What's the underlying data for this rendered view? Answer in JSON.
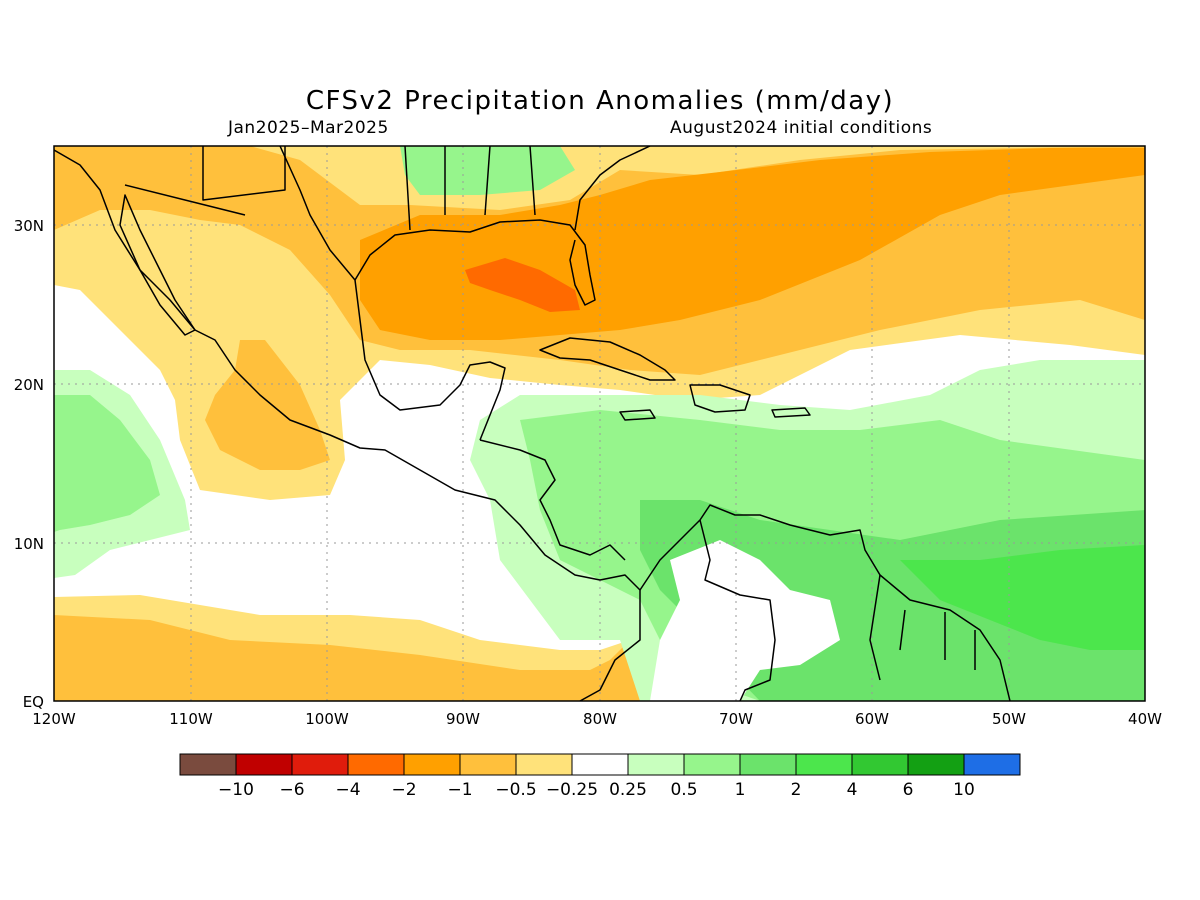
{
  "title": "CFSv2 Precipitation Anomalies (mm/day)",
  "subtitle_left": "Jan2025–Mar2025",
  "subtitle_right": "August2024 initial conditions",
  "map": {
    "lon_range": [
      -120,
      -40
    ],
    "lat_range": [
      0,
      35
    ],
    "x_ticks": [
      {
        "lon": -120,
        "label": "120W"
      },
      {
        "lon": -110,
        "label": "110W"
      },
      {
        "lon": -100,
        "label": "100W"
      },
      {
        "lon": -90,
        "label": "90W"
      },
      {
        "lon": -80,
        "label": "80W"
      },
      {
        "lon": -70,
        "label": "70W"
      },
      {
        "lon": -60,
        "label": "60W"
      },
      {
        "lon": -50,
        "label": "50W"
      },
      {
        "lon": -40,
        "label": "40W"
      }
    ],
    "y_ticks": [
      {
        "lat": 0,
        "label": "EQ"
      },
      {
        "lat": 10,
        "label": "10N"
      },
      {
        "lat": 20,
        "label": "20N"
      },
      {
        "lat": 30,
        "label": "30N"
      }
    ],
    "grid": true
  },
  "colorbar": {
    "colors": [
      "#7a4b3e",
      "#c00000",
      "#e01c0c",
      "#ff6a00",
      "#ffa000",
      "#ffc03c",
      "#ffe27a",
      "#ffffff",
      "#c8ffbe",
      "#96f58c",
      "#6be36b",
      "#4ce64c",
      "#32c832",
      "#13a013",
      "#1e6ee6"
    ],
    "labels": [
      "−10",
      "−6",
      "−4",
      "−2",
      "−1",
      "−0.5",
      "−0.25",
      "0.25",
      "0.5",
      "1",
      "2",
      "4",
      "6",
      "10"
    ]
  },
  "colors": {
    "ocean_neutral": "#ffffff",
    "coast": "#000000",
    "grid": "#9a9a9a"
  }
}
